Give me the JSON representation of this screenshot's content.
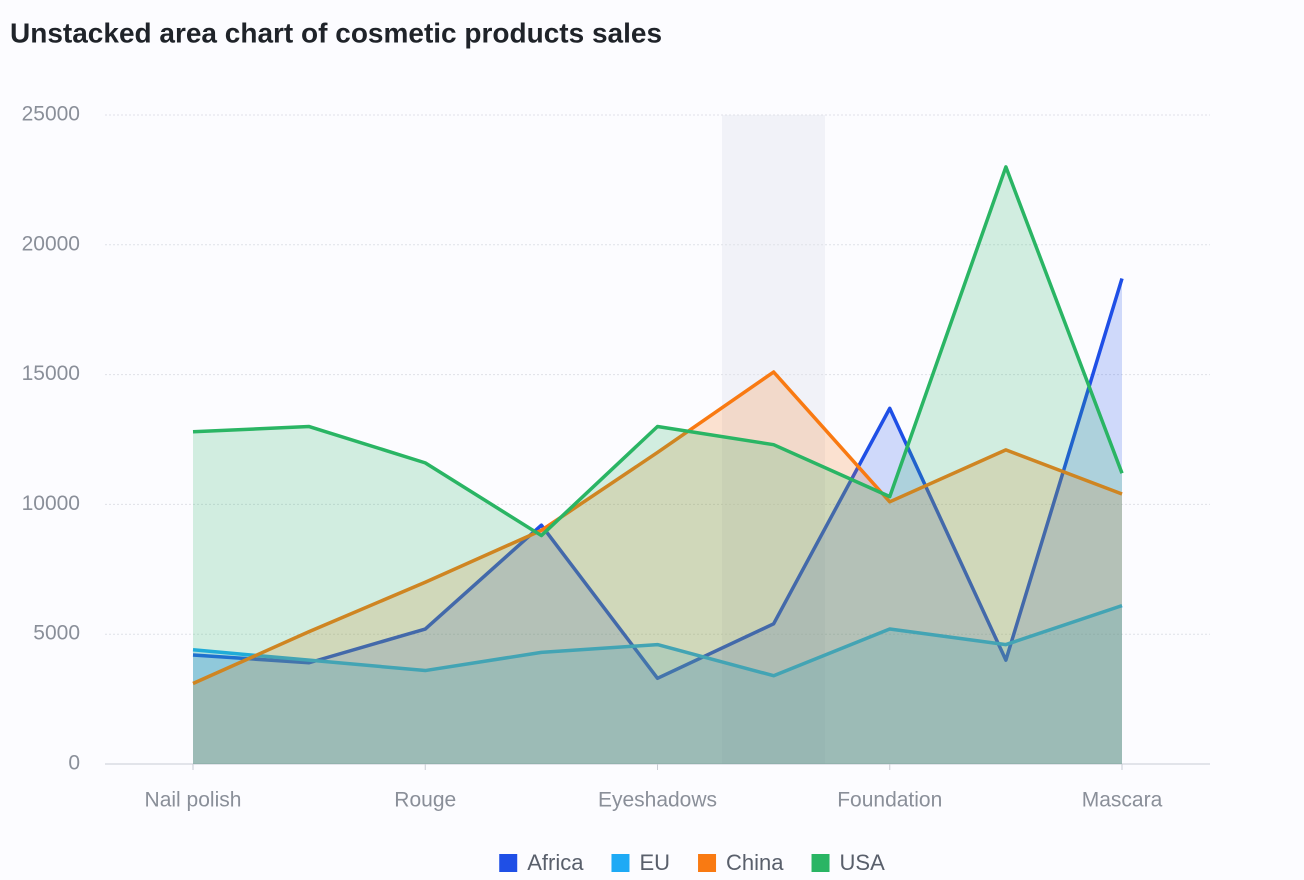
{
  "chart_data": {
    "type": "area",
    "title": "Unstacked area chart of cosmetic products sales",
    "categories": [
      "Nail polish",
      null,
      "Rouge",
      null,
      "Eyeshadows",
      null,
      "Foundation",
      null,
      "Mascara"
    ],
    "series": [
      {
        "name": "Africa",
        "color": "#1f4fe6",
        "values": [
          4200,
          3900,
          5200,
          9200,
          3300,
          5400,
          13700,
          4000,
          18700
        ]
      },
      {
        "name": "EU",
        "color": "#1eaaf5",
        "values": [
          4400,
          4000,
          3600,
          4300,
          4600,
          3400,
          5200,
          4600,
          6100
        ]
      },
      {
        "name": "China",
        "color": "#f97a12",
        "values": [
          3100,
          5100,
          7000,
          9000,
          12000,
          15100,
          10100,
          12100,
          10400
        ]
      },
      {
        "name": "USA",
        "color": "#2ab564",
        "values": [
          12800,
          13000,
          11600,
          8800,
          13000,
          12300,
          10300,
          23000,
          11200
        ]
      }
    ],
    "ylim": [
      0,
      25000
    ],
    "yticks": [
      0,
      5000,
      10000,
      15000,
      20000,
      25000
    ],
    "grid": true,
    "legend": "bottom"
  }
}
